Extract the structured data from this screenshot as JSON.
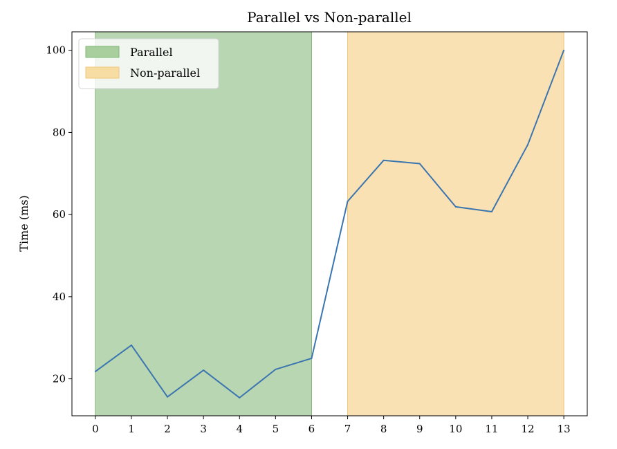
{
  "chart_data": {
    "type": "line",
    "title": "Parallel vs Non-parallel",
    "xlabel": "",
    "ylabel": "Time (ms)",
    "xlim": [
      -0.65,
      13.65
    ],
    "ylim": [
      11,
      104.5
    ],
    "x_ticks": [
      0,
      1,
      2,
      3,
      4,
      5,
      6,
      7,
      8,
      9,
      10,
      11,
      12,
      13
    ],
    "y_ticks": [
      20,
      40,
      60,
      80,
      100
    ],
    "grid": false,
    "legend_position": "top-left",
    "series": [
      {
        "name": "",
        "color": "#3b75af",
        "x": [
          0,
          1,
          2,
          3,
          4,
          5,
          6,
          7,
          8,
          9,
          10,
          11,
          12,
          13
        ],
        "y": [
          21.8,
          28.2,
          15.6,
          22.1,
          15.4,
          22.3,
          25.0,
          63.2,
          73.2,
          72.4,
          61.9,
          60.7,
          77.0,
          100.0
        ]
      }
    ],
    "regions": [
      {
        "label": "Parallel",
        "x_start": 0,
        "x_end": 6,
        "color": "#b9d6b3",
        "legend_color": "#a9cf9f",
        "edge_color": "#7fb776"
      },
      {
        "label": "Non-parallel",
        "x_start": 7,
        "x_end": 13,
        "color": "#f9e1b3",
        "legend_color": "#f7dca3",
        "edge_color": "#f0c674"
      }
    ]
  }
}
